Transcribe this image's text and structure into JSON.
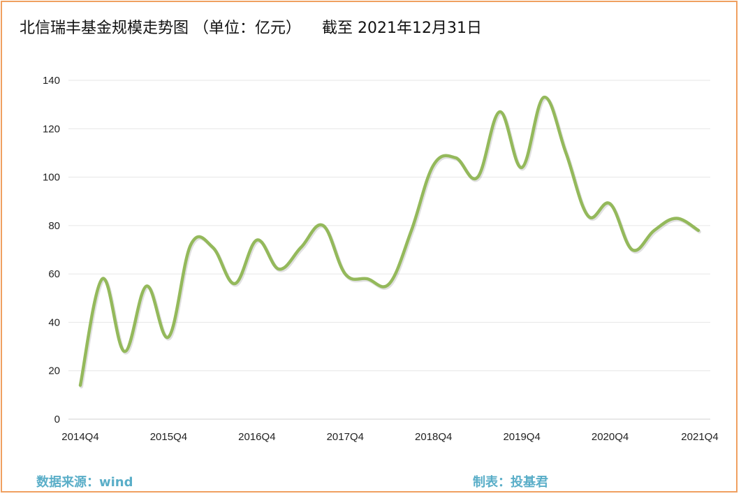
{
  "title": "北信瑞丰基金规模走势图 （单位：亿元）",
  "date_note": "截至 2021年12月31日",
  "footer": {
    "source": "数据来源：wind",
    "maker": "制表：投基君"
  },
  "colors": {
    "line": "#94b95b",
    "border": "#f0a060",
    "footer_text": "#5aaec8",
    "grid": "#e6e6e6"
  },
  "chart_data": {
    "type": "line",
    "title": "北信瑞丰基金规模走势图 （单位：亿元）",
    "xlabel": "",
    "ylabel": "",
    "ylim": [
      0,
      140
    ],
    "yticks": [
      0,
      20,
      40,
      60,
      80,
      100,
      120,
      140
    ],
    "x_tick_labels": [
      "2014Q4",
      "2015Q4",
      "2016Q4",
      "2017Q4",
      "2018Q4",
      "2019Q4",
      "2020Q4",
      "2021Q4"
    ],
    "grid": true,
    "legend": "none",
    "series": [
      {
        "values": [
          14,
          58,
          28,
          55,
          34,
          72,
          71,
          56,
          74,
          62,
          71,
          80,
          60,
          58,
          56,
          78,
          105,
          108,
          100,
          127,
          104,
          133,
          110,
          84,
          89,
          70,
          78,
          83,
          78
        ]
      }
    ]
  }
}
